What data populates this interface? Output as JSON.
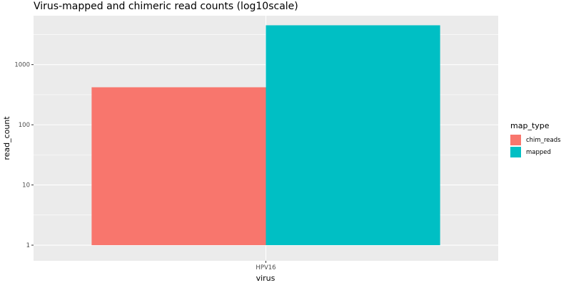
{
  "title": "Virus-mapped and chimeric read counts (log10scale)",
  "chart_data": {
    "type": "bar",
    "position": "dodge",
    "categories": [
      "HPV16"
    ],
    "series": [
      {
        "name": "chim_reads",
        "values": [
          420
        ],
        "color": "#F8766D"
      },
      {
        "name": "mapped",
        "values": [
          4500
        ],
        "color": "#00BFC4"
      }
    ],
    "xlabel": "virus",
    "ylabel": "read_count",
    "yscale": "log10",
    "ylim": [
      0.55,
      6500
    ],
    "yticks": [
      1,
      10,
      100,
      1000
    ],
    "ytick_labels": [
      "1",
      "10",
      "100",
      "1000"
    ],
    "grid": true,
    "legend": {
      "title": "map_type",
      "placement": "right"
    }
  }
}
